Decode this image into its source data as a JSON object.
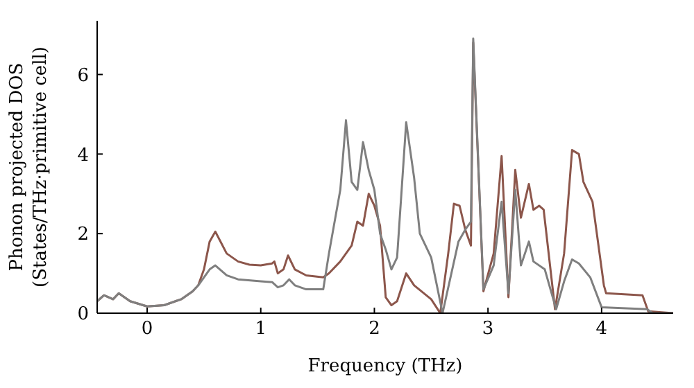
{
  "chart_data": {
    "type": "line",
    "xlabel": "Frequency (THz)",
    "ylabel": "Phonon projected DOS\n(States/THz·primitive cell)",
    "xlim": [
      -0.44,
      4.63
    ],
    "ylim": [
      0,
      7.35
    ],
    "xticks": [
      0,
      1,
      2,
      3,
      4
    ],
    "yticks": [
      0,
      2,
      4,
      6
    ],
    "marker": "none",
    "line_style": "solid",
    "series": [
      {
        "color": "#8c564b",
        "x": [
          -0.44,
          -0.38,
          -0.3,
          -0.25,
          -0.15,
          0,
          0.15,
          0.3,
          0.4,
          0.45,
          0.5,
          0.55,
          0.6,
          0.7,
          0.8,
          0.9,
          1.0,
          1.1,
          1.12,
          1.15,
          1.2,
          1.24,
          1.3,
          1.4,
          1.55,
          1.6,
          1.7,
          1.8,
          1.85,
          1.9,
          1.95,
          2.0,
          2.05,
          2.1,
          2.15,
          2.2,
          2.28,
          2.35,
          2.5,
          2.58,
          2.65,
          2.7,
          2.75,
          2.8,
          2.85,
          2.87,
          2.96,
          3.05,
          3.12,
          3.18,
          3.24,
          3.29,
          3.36,
          3.4,
          3.45,
          3.49,
          3.59,
          3.67,
          3.74,
          3.8,
          3.84,
          3.92,
          4.02,
          4.04,
          4.36,
          4.41,
          4.63
        ],
        "values": [
          0.3,
          0.45,
          0.35,
          0.5,
          0.3,
          0.17,
          0.2,
          0.35,
          0.55,
          0.7,
          1.1,
          1.8,
          2.05,
          1.5,
          1.3,
          1.22,
          1.2,
          1.25,
          1.3,
          1.0,
          1.1,
          1.45,
          1.1,
          0.95,
          0.9,
          1.0,
          1.3,
          1.7,
          2.3,
          2.2,
          3.0,
          2.7,
          2.2,
          0.4,
          0.2,
          0.3,
          1.0,
          0.7,
          0.35,
          0.0,
          1.5,
          2.75,
          2.7,
          2.1,
          1.7,
          6.8,
          0.55,
          1.5,
          3.95,
          0.4,
          3.6,
          2.4,
          3.25,
          2.6,
          2.7,
          2.6,
          0.1,
          1.5,
          4.1,
          4.0,
          3.3,
          2.8,
          0.7,
          0.5,
          0.45,
          0.05,
          0.0
        ]
      },
      {
        "color": "#7f7f7f",
        "x": [
          -0.44,
          -0.38,
          -0.3,
          -0.25,
          -0.15,
          0,
          0.15,
          0.3,
          0.4,
          0.45,
          0.5,
          0.55,
          0.6,
          0.7,
          0.8,
          1.0,
          1.1,
          1.15,
          1.2,
          1.25,
          1.3,
          1.4,
          1.55,
          1.6,
          1.7,
          1.75,
          1.8,
          1.85,
          1.9,
          1.95,
          2.0,
          2.05,
          2.1,
          2.15,
          2.2,
          2.28,
          2.35,
          2.4,
          2.5,
          2.6,
          2.74,
          2.8,
          2.85,
          2.87,
          2.96,
          3.05,
          3.12,
          3.18,
          3.24,
          3.29,
          3.36,
          3.4,
          3.5,
          3.6,
          3.67,
          3.74,
          3.8,
          3.9,
          4.0,
          4.4,
          4.45,
          4.63
        ],
        "values": [
          0.3,
          0.45,
          0.35,
          0.5,
          0.3,
          0.17,
          0.2,
          0.35,
          0.55,
          0.7,
          0.9,
          1.1,
          1.2,
          0.95,
          0.85,
          0.8,
          0.78,
          0.65,
          0.7,
          0.85,
          0.7,
          0.6,
          0.6,
          1.5,
          3.1,
          4.85,
          3.3,
          3.1,
          4.3,
          3.6,
          3.1,
          2.0,
          1.6,
          1.1,
          1.4,
          4.8,
          3.4,
          2.0,
          1.4,
          0.0,
          1.8,
          2.1,
          2.3,
          6.9,
          0.6,
          1.2,
          2.8,
          0.5,
          3.1,
          1.2,
          1.8,
          1.3,
          1.1,
          0.1,
          0.8,
          1.35,
          1.25,
          0.9,
          0.15,
          0.1,
          0.0,
          0.0
        ]
      }
    ]
  }
}
